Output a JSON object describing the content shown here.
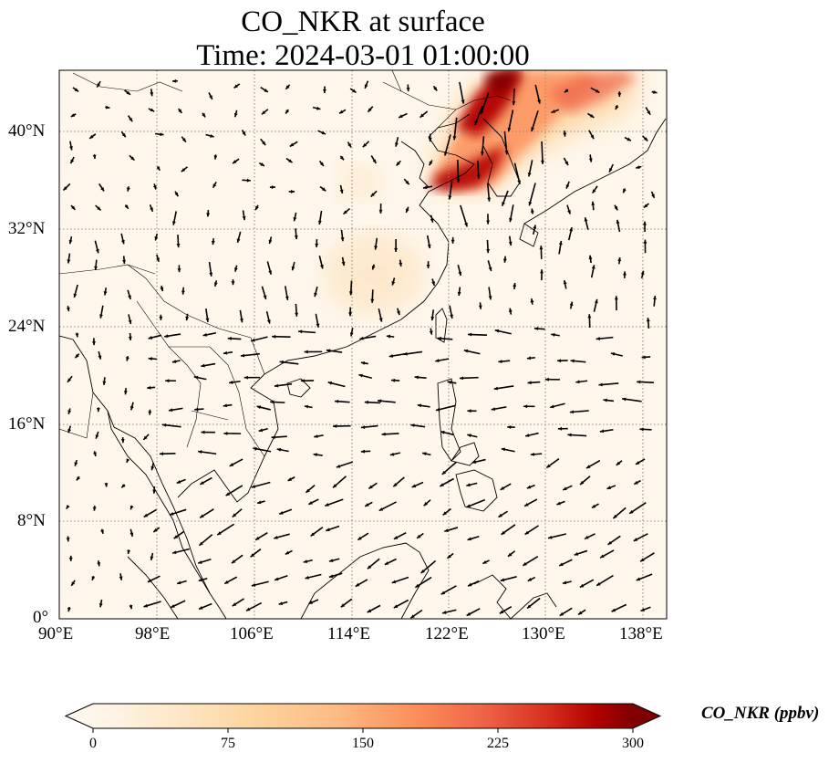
{
  "title": {
    "line1": "CO_NKR at surface",
    "line2": "Time: 2024-03-01 01:00:00"
  },
  "map": {
    "lon_range": [
      90,
      139.5
    ],
    "lat_range": [
      0,
      44.5
    ],
    "x_ticks": [
      "90°E",
      "98°E",
      "106°E",
      "114°E",
      "122°E",
      "130°E",
      "138°E"
    ],
    "y_ticks": [
      "0°",
      "8°N",
      "16°N",
      "24°N",
      "32°N",
      "40°N"
    ],
    "gridlines": true,
    "colormap": "OrRd",
    "colors": {
      "low": "#fff7ec",
      "mid": "#fdbb84",
      "high": "#7f0000",
      "coast": "#000000"
    }
  },
  "colorbar": {
    "title": "CO_NKR (ppbv)",
    "ticks": [
      "0",
      "75",
      "150",
      "225",
      "300"
    ],
    "range": [
      0,
      300
    ],
    "extend": "both"
  }
}
